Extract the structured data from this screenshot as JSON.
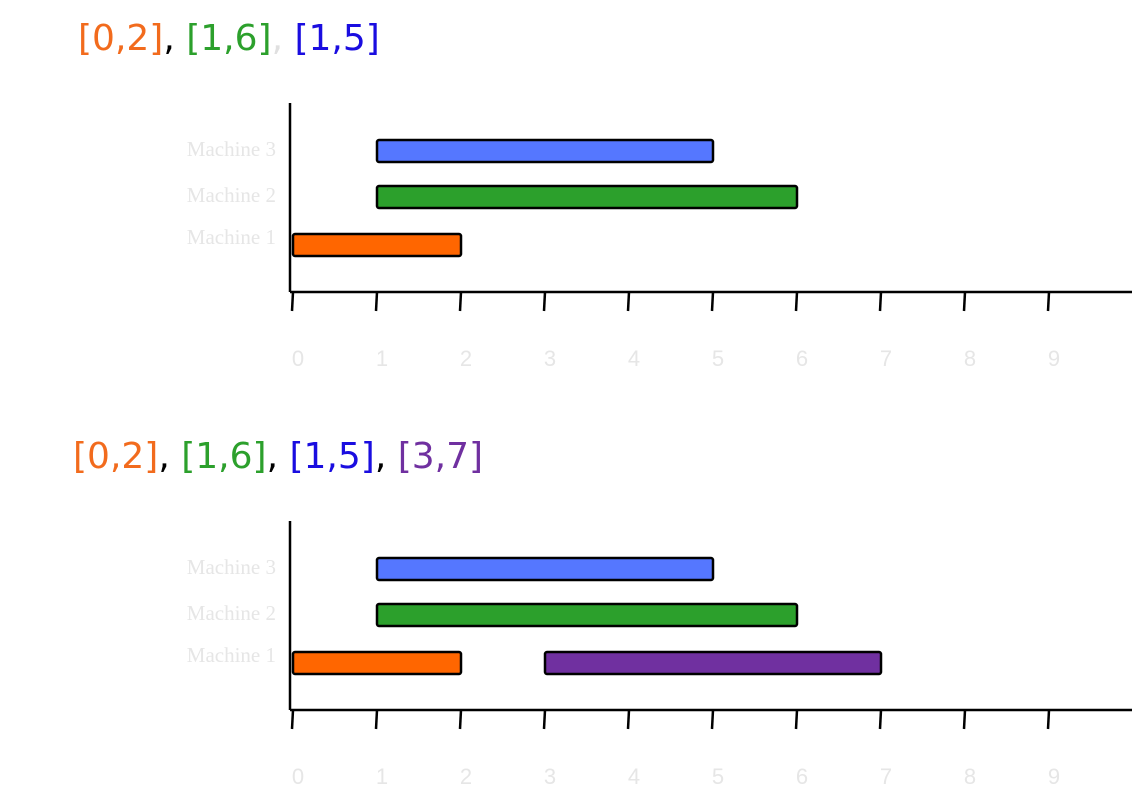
{
  "chart_data": [
    {
      "type": "gantt",
      "title_parts": [
        {
          "text": "[0,2]",
          "color": "#f26b1d"
        },
        {
          "text": ", ",
          "color": "#000000"
        },
        {
          "text": "[1,6]",
          "color": "#2ca02c"
        },
        {
          "text": ", ",
          "color": "#e0e0e0"
        },
        {
          "text": "[1,5]",
          "color": "#1a0de0"
        }
      ],
      "categories": [
        "Machine 1",
        "Machine 2",
        "Machine 3"
      ],
      "tasks": [
        {
          "category": "Machine 1",
          "start": 0,
          "end": 2,
          "color": "#ff6600"
        },
        {
          "category": "Machine 2",
          "start": 1,
          "end": 6,
          "color": "#2ca02c"
        },
        {
          "category": "Machine 3",
          "start": 1,
          "end": 5,
          "color": "#5577ff"
        }
      ],
      "xlim": [
        0,
        10
      ],
      "xticks": [
        0,
        1,
        2,
        3,
        4,
        5,
        6,
        7,
        8,
        9
      ]
    },
    {
      "type": "gantt",
      "title_parts": [
        {
          "text": "[0,2]",
          "color": "#f26b1d"
        },
        {
          "text": ", ",
          "color": "#000000"
        },
        {
          "text": "[1,6]",
          "color": "#2ca02c"
        },
        {
          "text": ", ",
          "color": "#000000"
        },
        {
          "text": "[1,5]",
          "color": "#1a0de0"
        },
        {
          "text": ", ",
          "color": "#000000"
        },
        {
          "text": "[3,7]",
          "color": "#7030a0"
        }
      ],
      "categories": [
        "Machine 1",
        "Machine 2",
        "Machine 3"
      ],
      "tasks": [
        {
          "category": "Machine 1",
          "start": 0,
          "end": 2,
          "color": "#ff6600"
        },
        {
          "category": "Machine 2",
          "start": 1,
          "end": 6,
          "color": "#2ca02c"
        },
        {
          "category": "Machine 3",
          "start": 1,
          "end": 5,
          "color": "#5577ff"
        },
        {
          "category": "Machine 1",
          "start": 3,
          "end": 7,
          "color": "#7030a0"
        }
      ],
      "xlim": [
        0,
        10
      ],
      "xticks": [
        0,
        1,
        2,
        3,
        4,
        5,
        6,
        7,
        8,
        9
      ]
    }
  ]
}
